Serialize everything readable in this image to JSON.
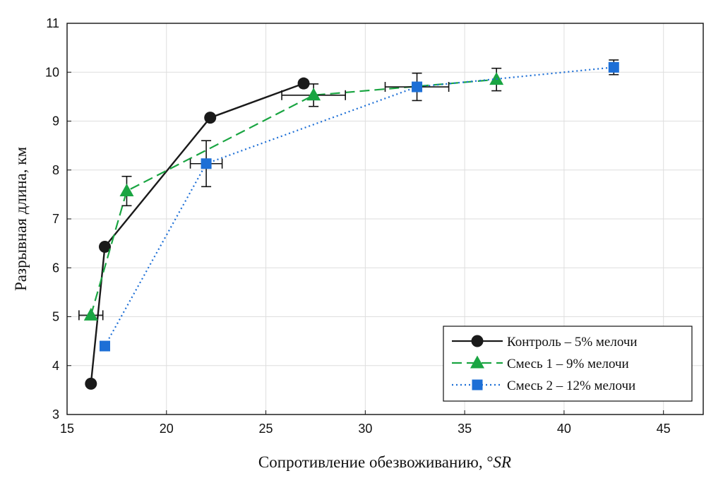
{
  "chart_data": {
    "type": "line",
    "xlabel": "Сопротивление обезвоживанию, °",
    "xlabel_unit": "SR",
    "ylabel": "Разрывная длина, км",
    "xlim": [
      15,
      47
    ],
    "ylim": [
      3,
      11
    ],
    "xticks": [
      15,
      20,
      25,
      30,
      35,
      40,
      45
    ],
    "yticks": [
      3,
      4,
      5,
      6,
      7,
      8,
      9,
      10,
      11
    ],
    "grid": true,
    "legend_position": "bottom-right",
    "series": [
      {
        "name": "Контроль – 5% мелочи",
        "marker": "circle",
        "line_style": "solid",
        "color": "#1a1a1a",
        "x": [
          16.2,
          16.9,
          22.2,
          26.9
        ],
        "y": [
          3.63,
          6.43,
          9.07,
          9.77
        ],
        "xerr": [
          0,
          0,
          0,
          0
        ],
        "yerr": [
          0,
          0,
          0,
          0
        ]
      },
      {
        "name": "Смесь 1 – 9% мелочи",
        "marker": "triangle",
        "line_style": "dashed",
        "color": "#1aa542",
        "x": [
          16.2,
          18.0,
          27.4,
          36.6
        ],
        "y": [
          5.03,
          7.57,
          9.53,
          9.85
        ],
        "xerr": [
          0.6,
          0,
          1.6,
          0
        ],
        "yerr": [
          0,
          0.3,
          0.23,
          0.23
        ]
      },
      {
        "name": "Смесь 2 – 12% мелочи",
        "marker": "square",
        "line_style": "dotted",
        "color": "#1d6fd6",
        "x": [
          16.9,
          22.0,
          32.6,
          42.5
        ],
        "y": [
          4.4,
          8.13,
          9.7,
          10.1
        ],
        "xerr": [
          0,
          0.8,
          1.6,
          0
        ],
        "yerr": [
          0,
          0.47,
          0.28,
          0.15
        ]
      }
    ]
  }
}
